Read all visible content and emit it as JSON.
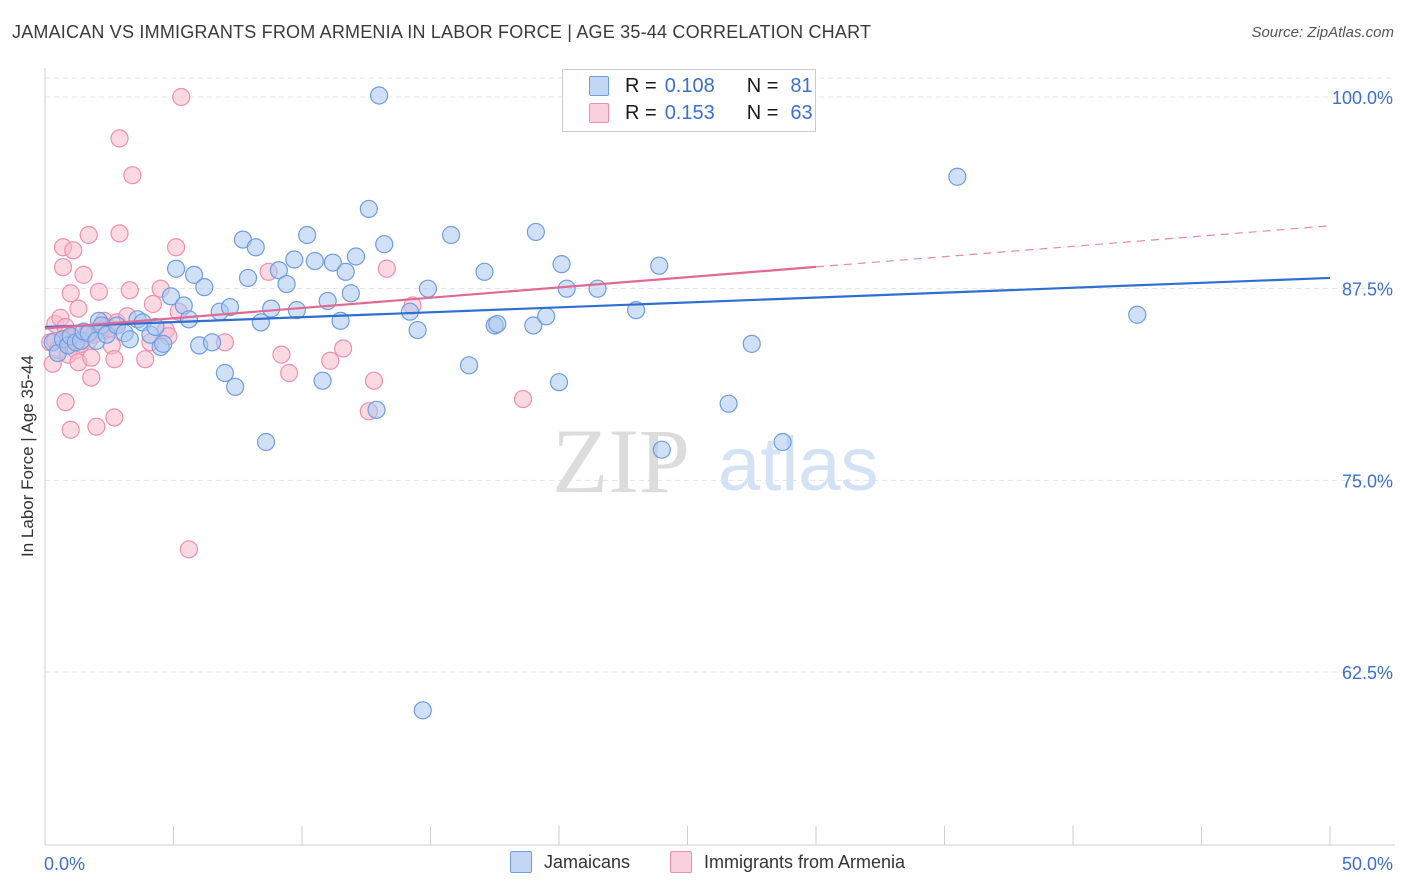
{
  "title": "JAMAICAN VS IMMIGRANTS FROM ARMENIA IN LABOR FORCE | AGE 35-44 CORRELATION CHART",
  "source": "Source: ZipAtlas.com",
  "watermark": {
    "zip": "ZIP",
    "atlas": "atlas"
  },
  "legend_box": {
    "rows": [
      {
        "r_label": "R =",
        "r_value": "0.108",
        "n_label": "N =",
        "n_value": "81",
        "color": "#a9c6f0"
      },
      {
        "r_label": "R =",
        "r_value": "0.153",
        "n_label": "N =",
        "n_value": "63",
        "color": "#f7b9cc"
      }
    ]
  },
  "bottom_legend": [
    "Jamaicans",
    "Immigrants from Armenia"
  ],
  "chart_data": {
    "type": "scatter",
    "title": "JAMAICAN VS IMMIGRANTS FROM ARMENIA IN LABOR FORCE | AGE 35-44 CORRELATION CHART",
    "xlabel": "",
    "ylabel": "In Labor Force | Age 35-44",
    "xlim": [
      0,
      50
    ],
    "ylim": [
      50,
      102
    ],
    "x_tick_labels": [
      "0.0%",
      "50.0%"
    ],
    "y_ticks": [
      62.5,
      75.0,
      87.5,
      100.0
    ],
    "y_tick_labels": [
      "62.5%",
      "75.0%",
      "87.5%",
      "100.0%"
    ],
    "grid": "horizontal dashed",
    "legend_position": "top-center",
    "series": [
      {
        "name": "Jamaicans",
        "color": "#a9c6f0",
        "edge": "#6f9de0",
        "line_color": "#2f6fd1",
        "trend": {
          "x": [
            0,
            50
          ],
          "y": [
            85.0,
            88.2
          ],
          "dashed_from": null
        },
        "points": [
          [
            0.3,
            84.0
          ],
          [
            0.5,
            83.3
          ],
          [
            0.7,
            84.2
          ],
          [
            0.9,
            83.8
          ],
          [
            1.0,
            84.4
          ],
          [
            1.2,
            84.0
          ],
          [
            1.4,
            84.1
          ],
          [
            1.5,
            84.7
          ],
          [
            1.7,
            84.6
          ],
          [
            2.0,
            84.1
          ],
          [
            2.1,
            85.4
          ],
          [
            2.2,
            85.1
          ],
          [
            2.4,
            84.5
          ],
          [
            2.8,
            85.1
          ],
          [
            3.1,
            84.6
          ],
          [
            3.3,
            84.2
          ],
          [
            3.6,
            85.5
          ],
          [
            3.8,
            85.3
          ],
          [
            4.1,
            84.5
          ],
          [
            4.3,
            85.0
          ],
          [
            4.5,
            83.7
          ],
          [
            4.6,
            83.9
          ],
          [
            4.9,
            87.0
          ],
          [
            5.1,
            88.8
          ],
          [
            5.4,
            86.4
          ],
          [
            5.6,
            85.5
          ],
          [
            5.8,
            88.4
          ],
          [
            6.0,
            83.8
          ],
          [
            6.2,
            87.6
          ],
          [
            6.5,
            84.0
          ],
          [
            6.8,
            86.0
          ],
          [
            7.0,
            82.0
          ],
          [
            7.2,
            86.3
          ],
          [
            7.4,
            81.1
          ],
          [
            7.7,
            90.7
          ],
          [
            7.9,
            88.2
          ],
          [
            8.2,
            90.2
          ],
          [
            8.4,
            85.3
          ],
          [
            8.6,
            77.5
          ],
          [
            8.8,
            86.2
          ],
          [
            9.1,
            88.7
          ],
          [
            9.4,
            87.8
          ],
          [
            9.7,
            89.4
          ],
          [
            9.8,
            86.1
          ],
          [
            10.2,
            91.0
          ],
          [
            10.5,
            89.3
          ],
          [
            10.8,
            81.5
          ],
          [
            11.0,
            86.7
          ],
          [
            11.2,
            89.2
          ],
          [
            11.5,
            85.4
          ],
          [
            11.7,
            88.6
          ],
          [
            11.9,
            87.2
          ],
          [
            12.1,
            89.6
          ],
          [
            12.6,
            92.7
          ],
          [
            12.9,
            79.6
          ],
          [
            13.0,
            100.1
          ],
          [
            13.2,
            90.4
          ],
          [
            14.2,
            86.0
          ],
          [
            14.5,
            84.8
          ],
          [
            14.7,
            60.0
          ],
          [
            14.9,
            87.5
          ],
          [
            15.8,
            91.0
          ],
          [
            16.5,
            82.5
          ],
          [
            17.1,
            88.6
          ],
          [
            17.5,
            85.1
          ],
          [
            17.6,
            85.2
          ],
          [
            19.0,
            85.1
          ],
          [
            19.1,
            91.2
          ],
          [
            19.5,
            85.7
          ],
          [
            20.0,
            81.4
          ],
          [
            20.1,
            89.1
          ],
          [
            20.3,
            87.5
          ],
          [
            21.5,
            87.5
          ],
          [
            23.0,
            86.1
          ],
          [
            23.9,
            89.0
          ],
          [
            24.0,
            77.0
          ],
          [
            26.6,
            80.0
          ],
          [
            27.5,
            83.9
          ],
          [
            28.7,
            77.5
          ],
          [
            35.5,
            94.8
          ],
          [
            42.5,
            85.8
          ]
        ]
      },
      {
        "name": "Immigrants from Armenia",
        "color": "#f7b9cc",
        "edge": "#ee8fae",
        "line_color": "#e06a93",
        "trend": {
          "x": [
            0,
            50
          ],
          "y": [
            84.9,
            91.6
          ],
          "dashed_from": 30
        },
        "points": [
          [
            0.2,
            84.0
          ],
          [
            0.3,
            82.6
          ],
          [
            0.4,
            85.2
          ],
          [
            0.4,
            84.1
          ],
          [
            0.5,
            83.5
          ],
          [
            0.6,
            85.6
          ],
          [
            0.7,
            90.2
          ],
          [
            0.7,
            88.9
          ],
          [
            0.8,
            85.0
          ],
          [
            0.8,
            80.1
          ],
          [
            0.9,
            84.3
          ],
          [
            0.9,
            83.2
          ],
          [
            1.0,
            87.2
          ],
          [
            1.0,
            78.3
          ],
          [
            1.1,
            90.0
          ],
          [
            1.2,
            84.5
          ],
          [
            1.2,
            83.5
          ],
          [
            1.3,
            86.2
          ],
          [
            1.3,
            82.7
          ],
          [
            1.4,
            83.9
          ],
          [
            1.5,
            88.4
          ],
          [
            1.6,
            84.5
          ],
          [
            1.7,
            91.0
          ],
          [
            1.7,
            84.1
          ],
          [
            1.8,
            83.0
          ],
          [
            1.8,
            81.7
          ],
          [
            1.9,
            84.5
          ],
          [
            2.0,
            78.5
          ],
          [
            2.1,
            87.3
          ],
          [
            2.2,
            84.8
          ],
          [
            2.3,
            85.4
          ],
          [
            2.4,
            85.0
          ],
          [
            2.5,
            84.9
          ],
          [
            2.6,
            83.8
          ],
          [
            2.7,
            82.9
          ],
          [
            2.7,
            79.1
          ],
          [
            2.8,
            85.3
          ],
          [
            2.9,
            97.3
          ],
          [
            2.9,
            91.1
          ],
          [
            3.2,
            85.7
          ],
          [
            3.3,
            87.4
          ],
          [
            3.4,
            94.9
          ],
          [
            3.9,
            82.9
          ],
          [
            4.1,
            84.0
          ],
          [
            4.2,
            86.5
          ],
          [
            4.5,
            87.5
          ],
          [
            4.7,
            84.8
          ],
          [
            4.8,
            84.4
          ],
          [
            5.1,
            90.2
          ],
          [
            5.2,
            86.0
          ],
          [
            5.3,
            100.0
          ],
          [
            5.6,
            70.5
          ],
          [
            7.0,
            84.0
          ],
          [
            8.7,
            88.6
          ],
          [
            9.2,
            83.2
          ],
          [
            9.5,
            82.0
          ],
          [
            11.1,
            82.8
          ],
          [
            11.6,
            83.6
          ],
          [
            12.6,
            79.5
          ],
          [
            12.8,
            81.5
          ],
          [
            13.3,
            88.8
          ],
          [
            14.3,
            86.4
          ],
          [
            18.6,
            80.3
          ]
        ]
      }
    ]
  }
}
